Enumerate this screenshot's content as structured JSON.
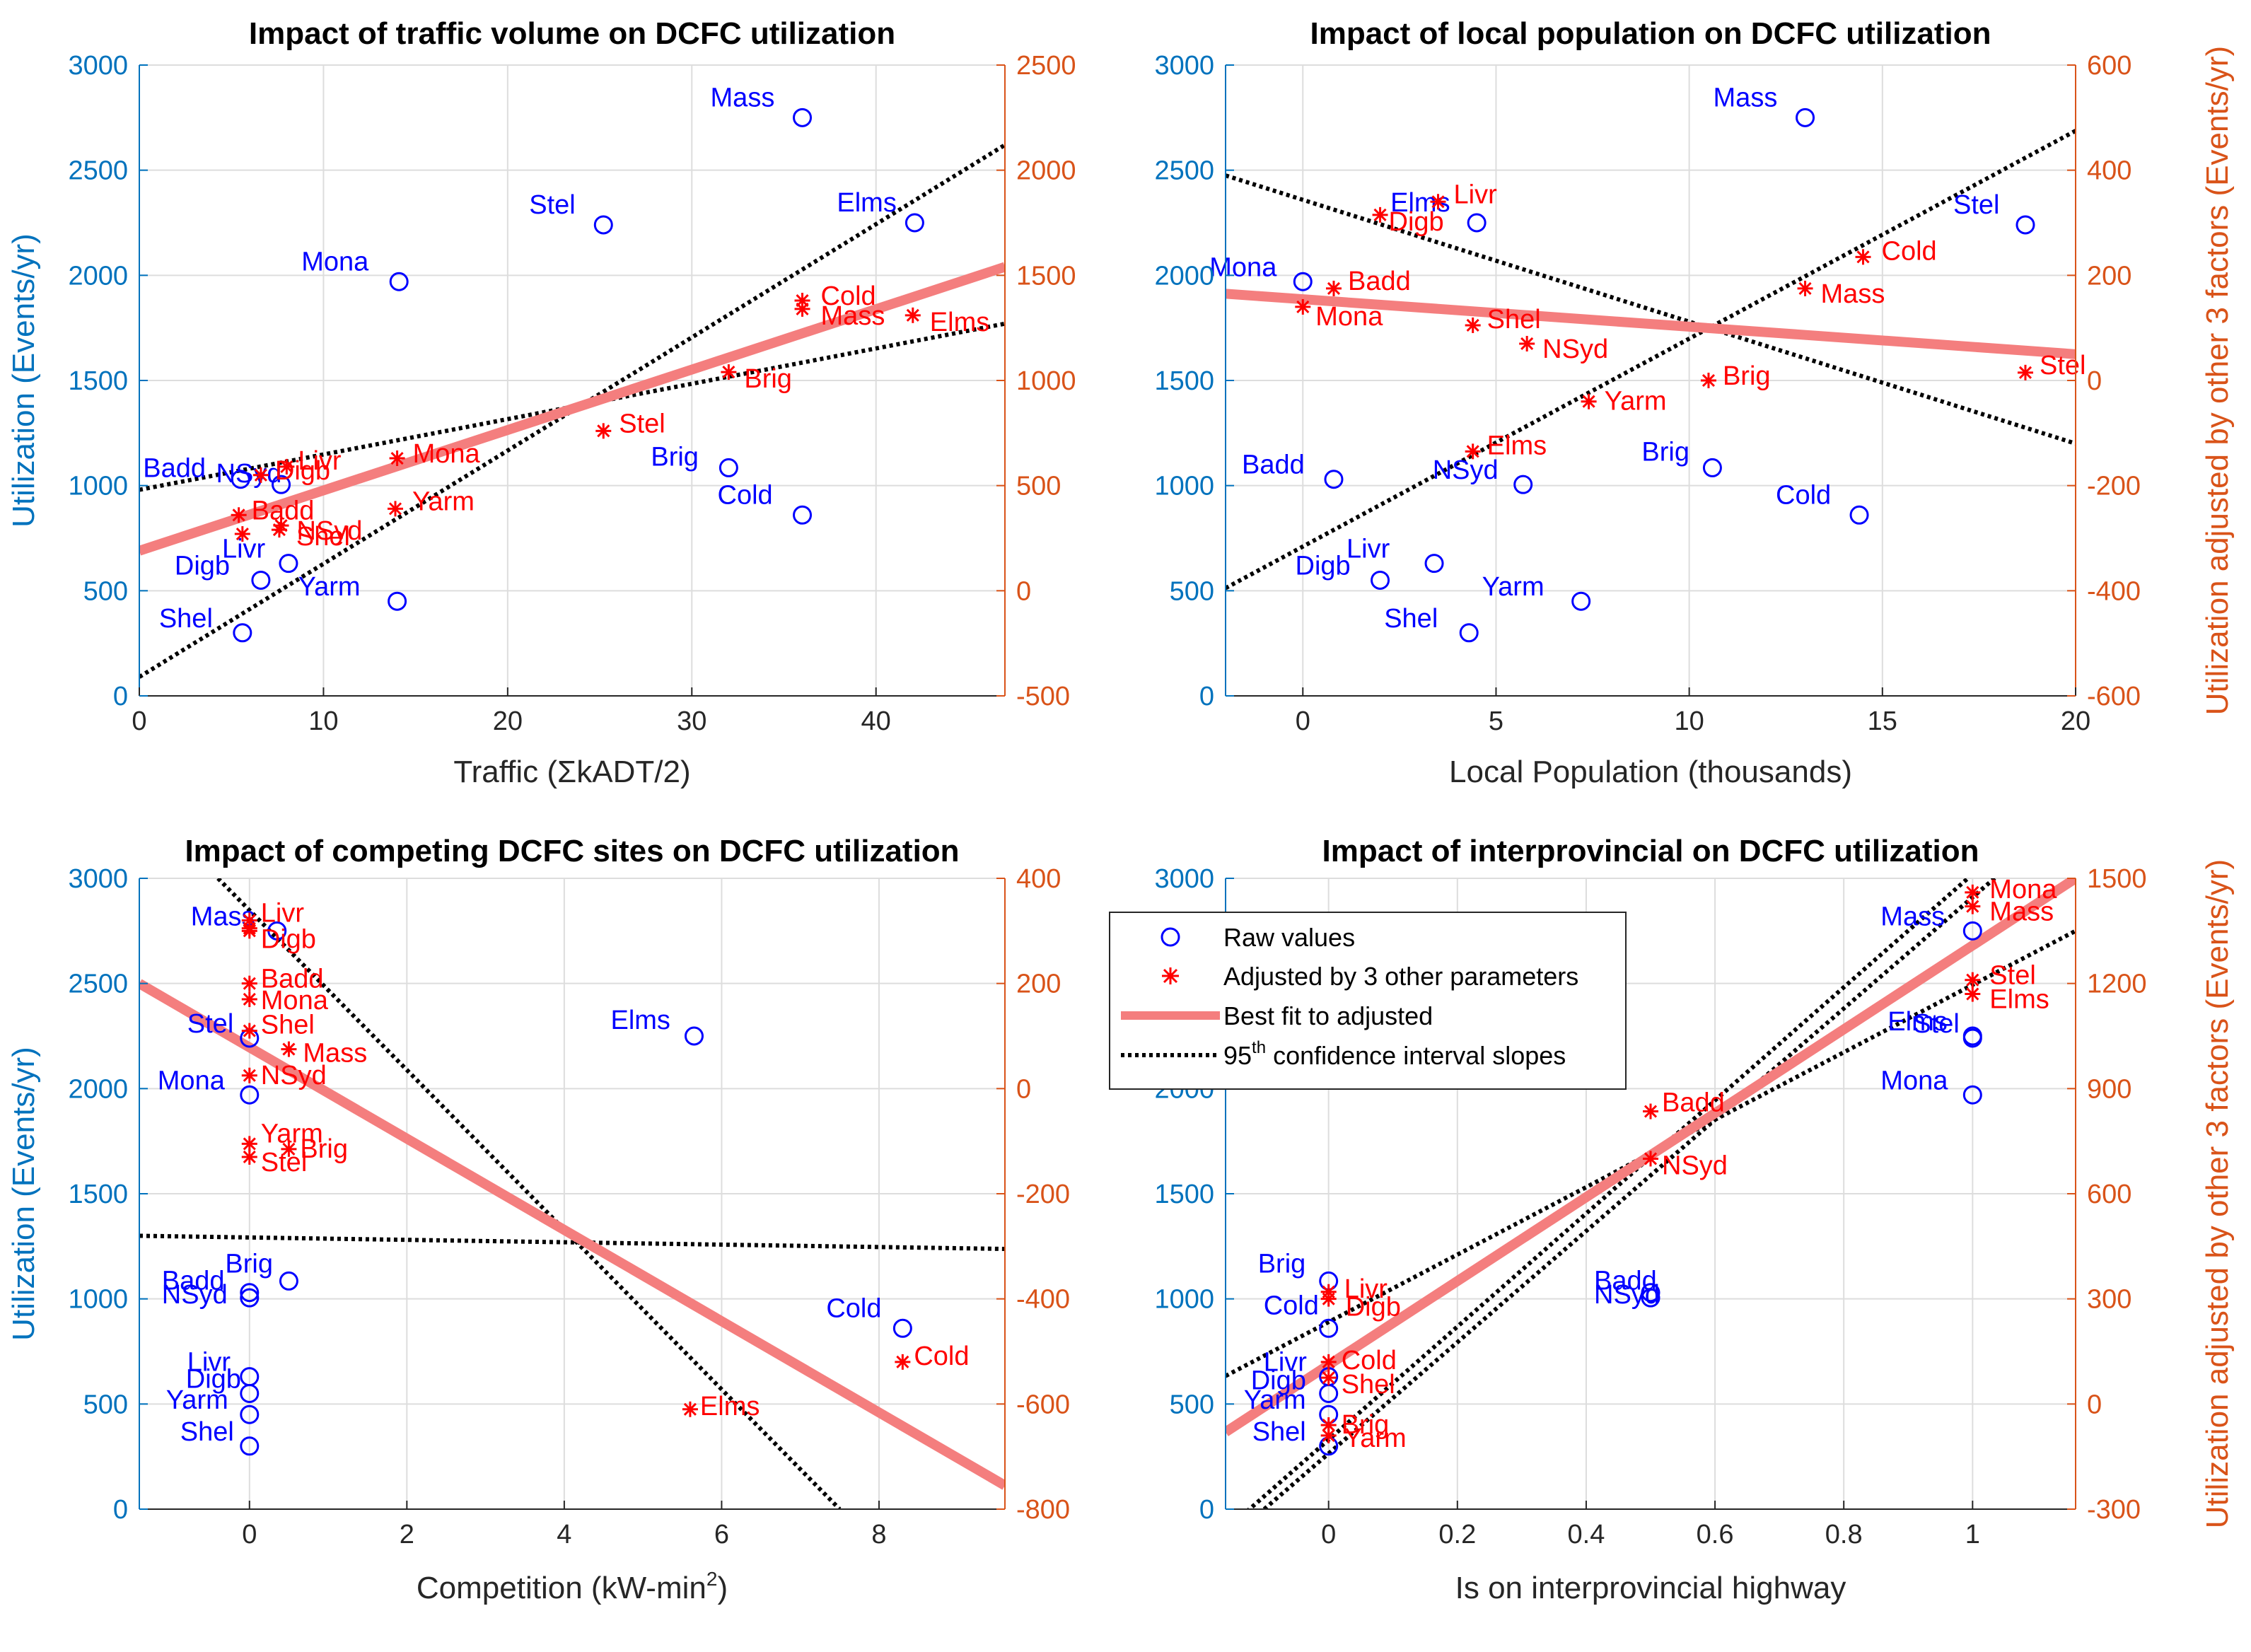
{
  "colors": {
    "left_axis": "#0072BD",
    "right_axis": "#D95319",
    "raw_marker": "#0000FF",
    "adjusted_marker": "#FF0000",
    "best_fit": "#F47E7E",
    "ci_line": "#000000",
    "grid": "#DDDDDD"
  },
  "legend": {
    "raw": "Raw values",
    "adjusted": "Adjusted by 3 other parameters",
    "best_fit": "Best fit to adjusted",
    "ci_sup": "th",
    "ci_number": "95",
    "ci_rest": " confidence interval slopes"
  },
  "chart_data": [
    {
      "type": "scatter",
      "title": "Impact of traffic volume on DCFC utilization",
      "xlabel": "Traffic (ΣkADT/2)",
      "ylabel_left": "Utilization (Events/yr)",
      "ylabel_right": "",
      "xlim": [
        0,
        47
      ],
      "ylim_left": [
        0,
        3000
      ],
      "ylim_right": [
        -500,
        2500
      ],
      "xticks": [
        0,
        10,
        20,
        30,
        40
      ],
      "yticks_left": [
        0,
        500,
        1000,
        1500,
        2000,
        2500,
        3000
      ],
      "yticks_right": [
        -500,
        0,
        500,
        1000,
        1500,
        2000,
        2500
      ],
      "raw": [
        {
          "label": "Mass",
          "x": 36,
          "y": 2750
        },
        {
          "label": "Stel",
          "x": 25.2,
          "y": 2240
        },
        {
          "label": "Elms",
          "x": 42.1,
          "y": 2250
        },
        {
          "label": "Mona",
          "x": 14.1,
          "y": 1970
        },
        {
          "label": "Badd",
          "x": 5.5,
          "y": 1030
        },
        {
          "label": "NSyd",
          "x": 7.7,
          "y": 1005
        },
        {
          "label": "Brig",
          "x": 32,
          "y": 1085
        },
        {
          "label": "Cold",
          "x": 36,
          "y": 860
        },
        {
          "label": "Livr",
          "x": 8.1,
          "y": 630
        },
        {
          "label": "Digb",
          "x": 6.6,
          "y": 550
        },
        {
          "label": "Yarm",
          "x": 14,
          "y": 450
        },
        {
          "label": "Shel",
          "x": 5.6,
          "y": 300
        }
      ],
      "adjusted": [
        {
          "label": "Cold",
          "x": 36,
          "y": 1380
        },
        {
          "label": "Mass",
          "x": 36,
          "y": 1340
        },
        {
          "label": "Elms",
          "x": 42,
          "y": 1310
        },
        {
          "label": "Brig",
          "x": 32,
          "y": 1040
        },
        {
          "label": "Stel",
          "x": 25.2,
          "y": 760
        },
        {
          "label": "Mona",
          "x": 14,
          "y": 630
        },
        {
          "label": "Livr",
          "x": 8,
          "y": 590
        },
        {
          "label": "Digb",
          "x": 6.6,
          "y": 550
        },
        {
          "label": "Yarm",
          "x": 13.9,
          "y": 390
        },
        {
          "label": "Badd",
          "x": 5.4,
          "y": 360
        },
        {
          "label": "NSyd",
          "x": 7.7,
          "y": 310
        },
        {
          "label": "Shel",
          "x": 7.6,
          "y": 290
        },
        {
          "label": "",
          "x": 5.6,
          "y": 270
        }
      ],
      "best_fit": {
        "x": [
          0,
          47
        ],
        "y": [
          190,
          1540
        ]
      },
      "ci_lines": [
        {
          "x": [
            0,
            47
          ],
          "y": [
            -410,
            2120
          ]
        },
        {
          "x": [
            0,
            47
          ],
          "y": [
            480,
            1270
          ]
        }
      ]
    },
    {
      "type": "scatter",
      "title": "Impact of local population on DCFC utilization",
      "xlabel": "Local Population (thousands)",
      "ylabel_left": "",
      "ylabel_right": "Utilization adjusted by other 3 factors (Events/yr)",
      "xlim": [
        -2,
        20
      ],
      "ylim_left": [
        0,
        3000
      ],
      "ylim_right": [
        -600,
        600
      ],
      "xticks": [
        0,
        5,
        10,
        15,
        20
      ],
      "yticks_left": [
        0,
        500,
        1000,
        1500,
        2000,
        2500,
        3000
      ],
      "yticks_right": [
        -600,
        -400,
        -200,
        0,
        200,
        400,
        600
      ],
      "raw": [
        {
          "label": "Mass",
          "x": 13,
          "y": 2750
        },
        {
          "label": "Elms",
          "x": 4.5,
          "y": 2250
        },
        {
          "label": "Stel",
          "x": 18.7,
          "y": 2240
        },
        {
          "label": "Mona",
          "x": 0,
          "y": 1970
        },
        {
          "label": "Badd",
          "x": 0.8,
          "y": 1030
        },
        {
          "label": "NSyd",
          "x": 5.7,
          "y": 1005
        },
        {
          "label": "Brig",
          "x": 10.6,
          "y": 1085
        },
        {
          "label": "Cold",
          "x": 14.4,
          "y": 860
        },
        {
          "label": "Livr",
          "x": 3.4,
          "y": 630
        },
        {
          "label": "Digb",
          "x": 2,
          "y": 550
        },
        {
          "label": "Yarm",
          "x": 7.2,
          "y": 450
        },
        {
          "label": "Shel",
          "x": 4.3,
          "y": 300
        }
      ],
      "adjusted": [
        {
          "label": "Livr",
          "x": 3.5,
          "y": 340
        },
        {
          "label": "Digb",
          "x": 2,
          "y": 315
        },
        {
          "label": "Cold",
          "x": 14.5,
          "y": 235
        },
        {
          "label": "Badd",
          "x": 0.8,
          "y": 175
        },
        {
          "label": "Mass",
          "x": 13,
          "y": 175
        },
        {
          "label": "Mona",
          "x": 0,
          "y": 140
        },
        {
          "label": "Shel",
          "x": 4.4,
          "y": 105
        },
        {
          "label": "NSyd",
          "x": 5.8,
          "y": 70
        },
        {
          "label": "Brig",
          "x": 10.5,
          "y": 0
        },
        {
          "label": "Stel",
          "x": 18.7,
          "y": 15
        },
        {
          "label": "Yarm",
          "x": 7.4,
          "y": -40
        },
        {
          "label": "Elms",
          "x": 4.4,
          "y": -135
        }
      ],
      "best_fit": {
        "x": [
          -2,
          20
        ],
        "y": [
          165,
          50
        ]
      },
      "ci_lines": [
        {
          "x": [
            -2,
            20
          ],
          "y": [
            -395,
            475
          ]
        },
        {
          "x": [
            -2,
            20
          ],
          "y": [
            390,
            -120
          ]
        }
      ]
    },
    {
      "type": "scatter",
      "title": "Impact of competing DCFC sites on DCFC utilization",
      "xlabel": "Competition (kW-min²)",
      "xlabel_main": "Competition (kW-min",
      "xlabel_sup": "2",
      "xlabel_end": ")",
      "ylabel_left": "Utilization (Events/yr)",
      "ylabel_right": "",
      "xlim": [
        -1.4,
        9.6
      ],
      "ylim_left": [
        0,
        3000
      ],
      "ylim_right": [
        -800,
        400
      ],
      "xticks": [
        0,
        2,
        4,
        6,
        8
      ],
      "yticks_left": [
        0,
        500,
        1000,
        1500,
        2000,
        2500,
        3000
      ],
      "yticks_right": [
        -800,
        -600,
        -400,
        -200,
        0,
        200,
        400
      ],
      "raw": [
        {
          "label": "Mass",
          "x": 0.35,
          "y": 2750
        },
        {
          "label": "Stel",
          "x": 0,
          "y": 2240
        },
        {
          "label": "Elms",
          "x": 5.65,
          "y": 2250
        },
        {
          "label": "Mona",
          "x": 0,
          "y": 1970
        },
        {
          "label": "Brig",
          "x": 0.5,
          "y": 1085
        },
        {
          "label": "Badd",
          "x": 0,
          "y": 1030
        },
        {
          "label": "NSyd",
          "x": 0,
          "y": 1005
        },
        {
          "label": "Cold",
          "x": 8.3,
          "y": 860
        },
        {
          "label": "Livr",
          "x": 0,
          "y": 630
        },
        {
          "label": "Digb",
          "x": 0,
          "y": 550
        },
        {
          "label": "Yarm",
          "x": 0,
          "y": 450
        },
        {
          "label": "Shel",
          "x": 0,
          "y": 300
        }
      ],
      "adjusted": [
        {
          "label": "Livr",
          "x": 0,
          "y": 320
        },
        {
          "label": "Digb",
          "x": 0,
          "y": 300
        },
        {
          "label": "",
          "x": 0,
          "y": 305
        },
        {
          "label": "Badd",
          "x": 0,
          "y": 200
        },
        {
          "label": "Mona",
          "x": 0,
          "y": 170
        },
        {
          "label": "Shel",
          "x": 0,
          "y": 110
        },
        {
          "label": "Mass",
          "x": 0.5,
          "y": 75
        },
        {
          "label": "NSyd",
          "x": 0,
          "y": 25
        },
        {
          "label": "Yarm",
          "x": 0,
          "y": -105
        },
        {
          "label": "Stel",
          "x": 0,
          "y": -130
        },
        {
          "label": "Brig",
          "x": 0.5,
          "y": -115
        },
        {
          "label": "Elms",
          "x": 5.6,
          "y": -610
        },
        {
          "label": "Cold",
          "x": 8.3,
          "y": -520
        }
      ],
      "best_fit": {
        "x": [
          -1.4,
          9.6
        ],
        "y": [
          200,
          -755
        ]
      },
      "ci_lines": [
        {
          "x": [
            -1.4,
            9.6
          ],
          "y": [
            -280,
            -305
          ]
        },
        {
          "x": [
            -0.4,
            7.5
          ],
          "y": [
            400,
            -800
          ]
        }
      ]
    },
    {
      "type": "scatter",
      "title": "Impact of interprovincial on DCFC utilization",
      "xlabel": "Is on interprovincial highway",
      "ylabel_left": "",
      "ylabel_right": "Utilization adjusted by other 3 factors (Events/yr)",
      "xlim": [
        -0.16,
        1.16
      ],
      "ylim_left": [
        0,
        3000
      ],
      "ylim_right": [
        -300,
        1500
      ],
      "xticks": [
        0,
        0.2,
        0.4,
        0.6,
        0.8,
        1
      ],
      "yticks_left": [
        0,
        500,
        1000,
        1500,
        2000,
        2500,
        3000
      ],
      "yticks_right": [
        -300,
        0,
        300,
        600,
        900,
        1200,
        1500
      ],
      "raw": [
        {
          "label": "Mass",
          "x": 1,
          "y": 2750
        },
        {
          "label": "Elms",
          "x": 1,
          "y": 2250
        },
        {
          "label": "Stel",
          "x": 1,
          "y": 2240
        },
        {
          "label": "Mona",
          "x": 1,
          "y": 1970
        },
        {
          "label": "Badd",
          "x": 0.5,
          "y": 1030
        },
        {
          "label": "NSyd",
          "x": 0.5,
          "y": 1005
        },
        {
          "label": "Brig",
          "x": 0,
          "y": 1085
        },
        {
          "label": "Cold",
          "x": 0,
          "y": 860
        },
        {
          "label": "Livr",
          "x": 0,
          "y": 630
        },
        {
          "label": "Digb",
          "x": 0,
          "y": 550
        },
        {
          "label": "Yarm",
          "x": 0,
          "y": 450
        },
        {
          "label": "Shel",
          "x": 0,
          "y": 300
        }
      ],
      "adjusted": [
        {
          "label": "Mona",
          "x": 1,
          "y": 1460
        },
        {
          "label": "Mass",
          "x": 1,
          "y": 1420
        },
        {
          "label": "Stel",
          "x": 1,
          "y": 1210
        },
        {
          "label": "Elms",
          "x": 1,
          "y": 1170
        },
        {
          "label": "Badd",
          "x": 0.5,
          "y": 835
        },
        {
          "label": "NSyd",
          "x": 0.5,
          "y": 700
        },
        {
          "label": "Livr",
          "x": 0,
          "y": 320
        },
        {
          "label": "Digb",
          "x": 0,
          "y": 300
        },
        {
          "label": "Cold",
          "x": 0,
          "y": 120
        },
        {
          "label": "Shel",
          "x": 0,
          "y": 75
        },
        {
          "label": "Brig",
          "x": 0,
          "y": -60
        },
        {
          "label": "Yarm",
          "x": 0,
          "y": -90
        }
      ],
      "best_fit": {
        "x": [
          -0.16,
          1.16
        ],
        "y": [
          -80,
          1500
        ]
      },
      "ci_lines": [
        {
          "x": [
            -0.16,
            1.16
          ],
          "y": [
            80,
            1350
          ]
        },
        {
          "x": [
            -0.1,
            1.16
          ],
          "y": [
            -300,
            1700
          ]
        },
        {
          "x": [
            -0.16,
            1.16
          ],
          "y": [
            -360,
            1770
          ]
        }
      ]
    }
  ]
}
